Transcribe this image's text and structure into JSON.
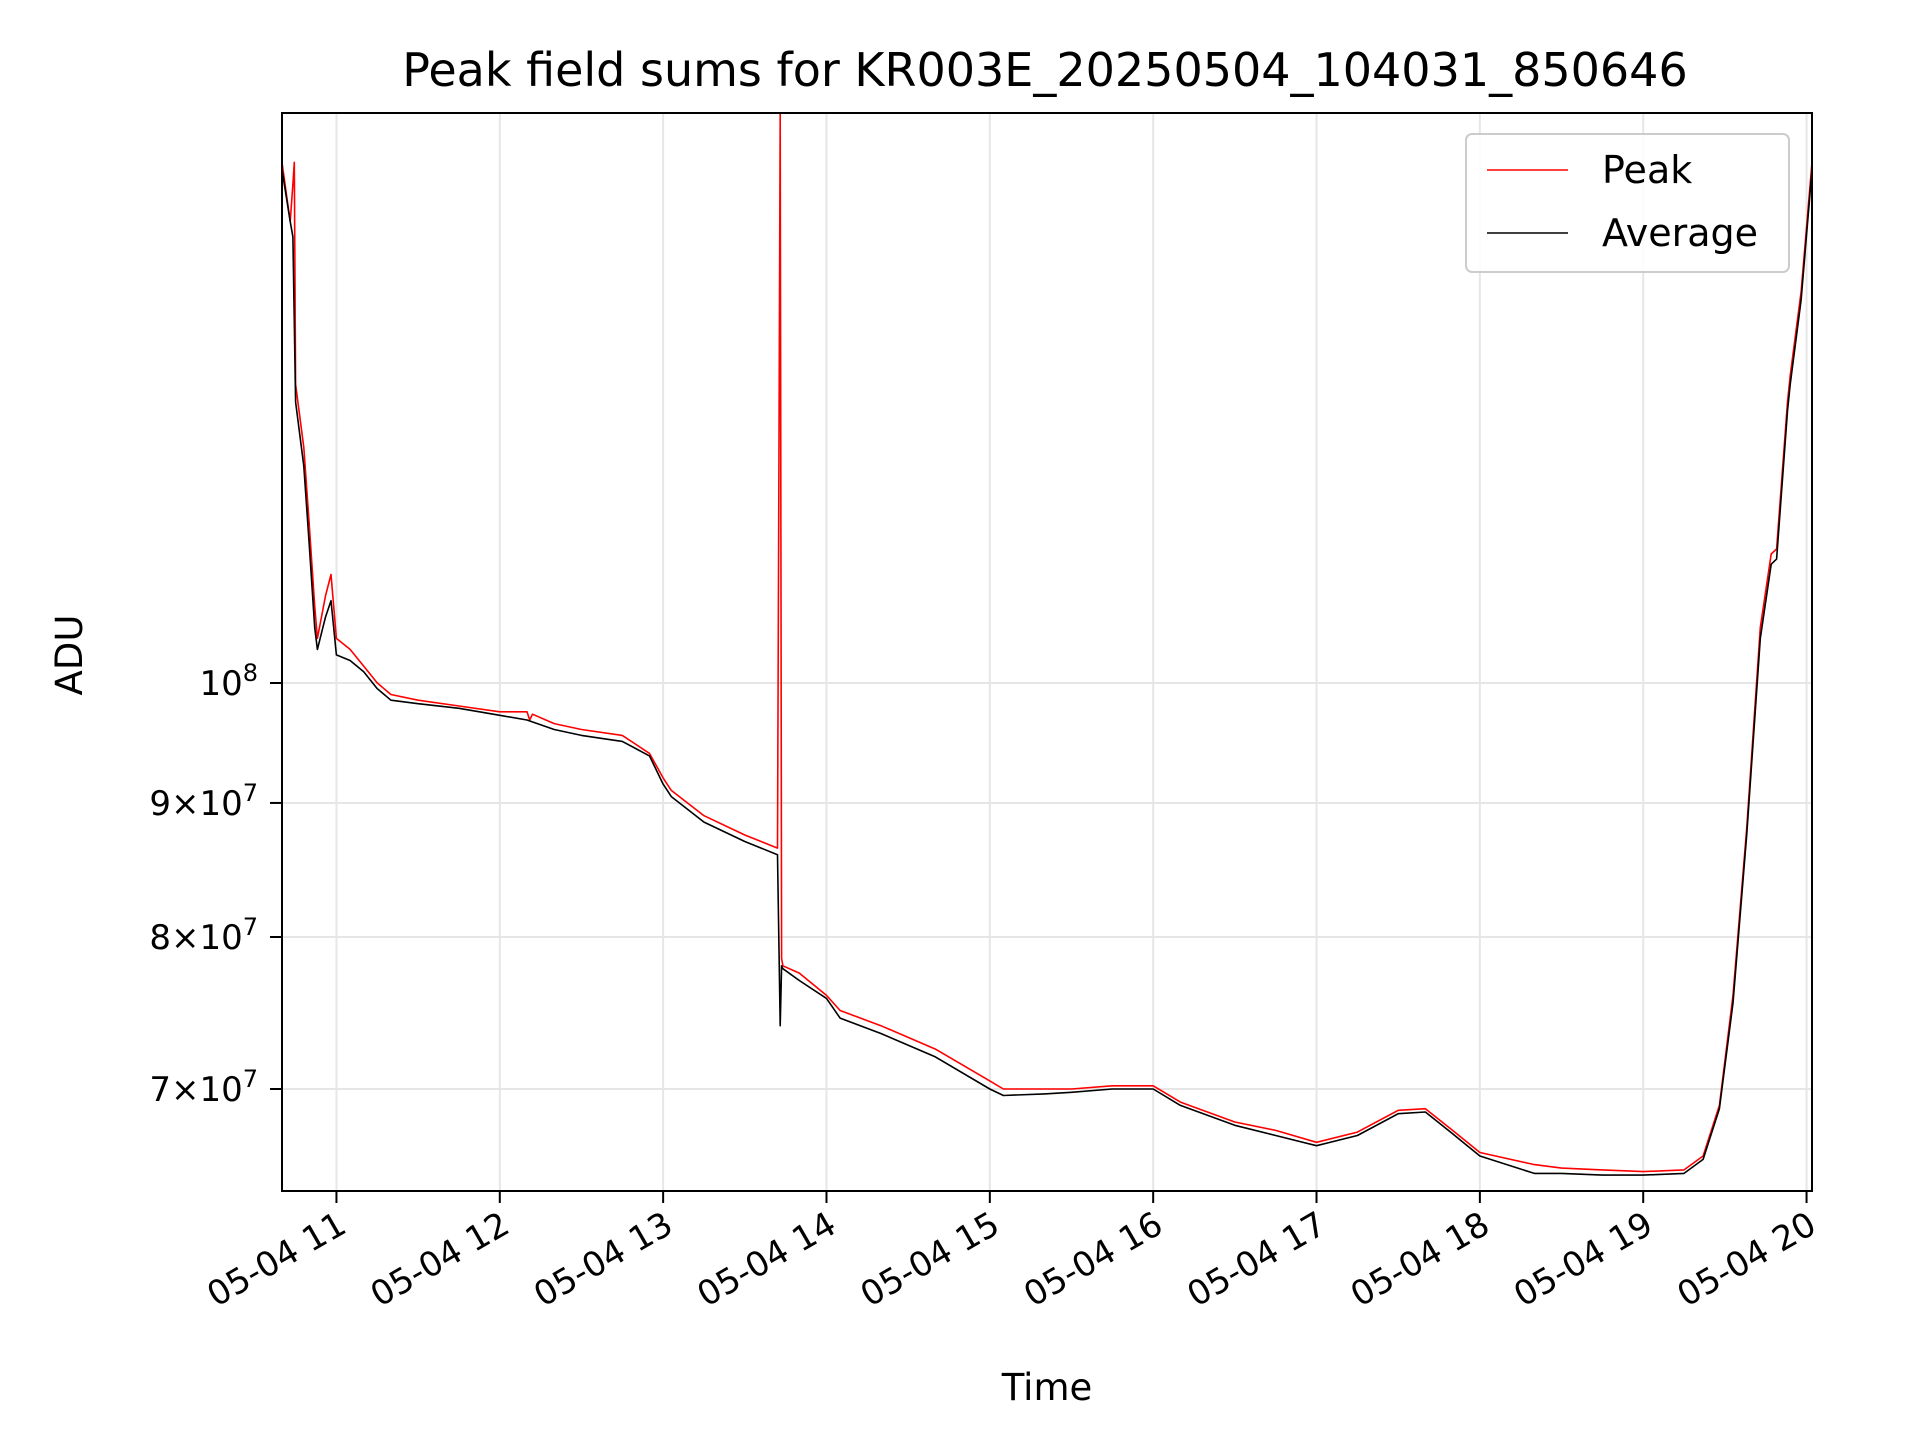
{
  "chart_data": {
    "type": "line",
    "title": "Peak field sums for KR003E_20250504_104031_850646",
    "xlabel": "Time",
    "ylabel": "ADU",
    "y_scale": "log",
    "grid": true,
    "legend_position": "top-right",
    "x_ticks": [
      "05-04 11",
      "05-04 12",
      "05-04 13",
      "05-04 14",
      "05-04 15",
      "05-04 16",
      "05-04 17",
      "05-04 18",
      "05-04 19",
      "05-04 20"
    ],
    "y_ticks": [
      {
        "value": 70000000,
        "mantissa": "7",
        "exponent": "7"
      },
      {
        "value": 80000000,
        "mantissa": "8",
        "exponent": "7"
      },
      {
        "value": 90000000,
        "mantissa": "9",
        "exponent": "7"
      },
      {
        "value": 100000000,
        "mantissa": "10",
        "exponent": "8"
      }
    ],
    "xlim": [
      "2025-05-04 10:40",
      "2025-05-04 20:02"
    ],
    "ylim": [
      64000000,
      165000000
    ],
    "series": [
      {
        "name": "Peak",
        "color": "#ff0000",
        "x": [
          "2025-05-04 10:40",
          "2025-05-04 10:43",
          "2025-05-04 10:44",
          "2025-05-04 10:44.5",
          "2025-05-04 10:45",
          "2025-05-04 10:48",
          "2025-05-04 10:50",
          "2025-05-04 10:52",
          "2025-05-04 10:53",
          "2025-05-04 10:56",
          "2025-05-04 10:58",
          "2025-05-04 11:00",
          "2025-05-04 11:05",
          "2025-05-04 11:10",
          "2025-05-04 11:15",
          "2025-05-04 11:20",
          "2025-05-04 11:30",
          "2025-05-04 11:45",
          "2025-05-04 12:00",
          "2025-05-04 12:10",
          "2025-05-04 12:11",
          "2025-05-04 12:12",
          "2025-05-04 12:20",
          "2025-05-04 12:30",
          "2025-05-04 12:45",
          "2025-05-04 12:55",
          "2025-05-04 13:00",
          "2025-05-04 13:03",
          "2025-05-04 13:15",
          "2025-05-04 13:30",
          "2025-05-04 13:42",
          "2025-05-04 13:43",
          "2025-05-04 13:43.5",
          "2025-05-04 13:44",
          "2025-05-04 13:50",
          "2025-05-04 14:00",
          "2025-05-04 14:05",
          "2025-05-04 14:20",
          "2025-05-04 14:40",
          "2025-05-04 15:00",
          "2025-05-04 15:05",
          "2025-05-04 15:20",
          "2025-05-04 15:30",
          "2025-05-04 15:45",
          "2025-05-04 16:00",
          "2025-05-04 16:10",
          "2025-05-04 16:30",
          "2025-05-04 16:45",
          "2025-05-04 17:00",
          "2025-05-04 17:15",
          "2025-05-04 17:30",
          "2025-05-04 17:40",
          "2025-05-04 17:50",
          "2025-05-04 18:00",
          "2025-05-04 18:20",
          "2025-05-04 18:30",
          "2025-05-04 18:45",
          "2025-05-04 19:00",
          "2025-05-04 19:15",
          "2025-05-04 19:22",
          "2025-05-04 19:28",
          "2025-05-04 19:33",
          "2025-05-04 19:38",
          "2025-05-04 19:43",
          "2025-05-04 19:47",
          "2025-05-04 19:49",
          "2025-05-04 19:53",
          "2025-05-04 19:54",
          "2025-05-04 19:58",
          "2025-05-04 20:02"
        ],
        "y": [
          158000000,
          150000000,
          155000000,
          158000000,
          130000000,
          123000000,
          115000000,
          107000000,
          104000000,
          108000000,
          110000000,
          104000000,
          103000000,
          101500000,
          100000000,
          99000000,
          98500000,
          98000000,
          97500000,
          97500000,
          96800000,
          97300000,
          96500000,
          96000000,
          95500000,
          94000000,
          92000000,
          91000000,
          89000000,
          87500000,
          86500000,
          165000000,
          78500000,
          78000000,
          77500000,
          76000000,
          75000000,
          74000000,
          72500000,
          70500000,
          70000000,
          70000000,
          70000000,
          70200000,
          70200000,
          69200000,
          68000000,
          67500000,
          66800000,
          67400000,
          68700000,
          68800000,
          67500000,
          66200000,
          65500000,
          65300000,
          65200000,
          65100000,
          65200000,
          66000000,
          69000000,
          76000000,
          88000000,
          105000000,
          112000000,
          112500000,
          128000000,
          131000000,
          141000000,
          158000000
        ]
      },
      {
        "name": "Average",
        "color": "#000000",
        "x": [
          "2025-05-04 10:40",
          "2025-05-04 10:43",
          "2025-05-04 10:44",
          "2025-05-04 10:45",
          "2025-05-04 10:48",
          "2025-05-04 10:50",
          "2025-05-04 10:52",
          "2025-05-04 10:53",
          "2025-05-04 10:56",
          "2025-05-04 10:58",
          "2025-05-04 11:00",
          "2025-05-04 11:05",
          "2025-05-04 11:10",
          "2025-05-04 11:15",
          "2025-05-04 11:20",
          "2025-05-04 11:30",
          "2025-05-04 11:45",
          "2025-05-04 12:00",
          "2025-05-04 12:10",
          "2025-05-04 12:20",
          "2025-05-04 12:30",
          "2025-05-04 12:45",
          "2025-05-04 12:55",
          "2025-05-04 13:00",
          "2025-05-04 13:03",
          "2025-05-04 13:15",
          "2025-05-04 13:30",
          "2025-05-04 13:42",
          "2025-05-04 13:43",
          "2025-05-04 13:43.5",
          "2025-05-04 13:44",
          "2025-05-04 13:50",
          "2025-05-04 14:00",
          "2025-05-04 14:05",
          "2025-05-04 14:20",
          "2025-05-04 14:40",
          "2025-05-04 15:00",
          "2025-05-04 15:05",
          "2025-05-04 15:20",
          "2025-05-04 15:30",
          "2025-05-04 15:45",
          "2025-05-04 16:00",
          "2025-05-04 16:10",
          "2025-05-04 16:30",
          "2025-05-04 16:45",
          "2025-05-04 17:00",
          "2025-05-04 17:15",
          "2025-05-04 17:30",
          "2025-05-04 17:40",
          "2025-05-04 17:50",
          "2025-05-04 18:00",
          "2025-05-04 18:20",
          "2025-05-04 18:30",
          "2025-05-04 18:45",
          "2025-05-04 19:00",
          "2025-05-04 19:15",
          "2025-05-04 19:22",
          "2025-05-04 19:28",
          "2025-05-04 19:33",
          "2025-05-04 19:38",
          "2025-05-04 19:43",
          "2025-05-04 19:47",
          "2025-05-04 19:49",
          "2025-05-04 19:53",
          "2025-05-04 19:54",
          "2025-05-04 19:58",
          "2025-05-04 20:02"
        ],
        "y": [
          157000000,
          150000000,
          148000000,
          128000000,
          121000000,
          113000000,
          105000000,
          103000000,
          106000000,
          107500000,
          102500000,
          102000000,
          101000000,
          99500000,
          98500000,
          98200000,
          97800000,
          97200000,
          96800000,
          96000000,
          95500000,
          95000000,
          93800000,
          91500000,
          90500000,
          88500000,
          87000000,
          86000000,
          74000000,
          78000000,
          77800000,
          77000000,
          75800000,
          74500000,
          73500000,
          72000000,
          70000000,
          69600000,
          69700000,
          69800000,
          70000000,
          70000000,
          69000000,
          67800000,
          67200000,
          66600000,
          67200000,
          68500000,
          68600000,
          67300000,
          66000000,
          65000000,
          65000000,
          64900000,
          64900000,
          65000000,
          65800000,
          68800000,
          75500000,
          87500000,
          104000000,
          111000000,
          111500000,
          127000000,
          130000000,
          140000000,
          157000000
        ]
      }
    ]
  }
}
